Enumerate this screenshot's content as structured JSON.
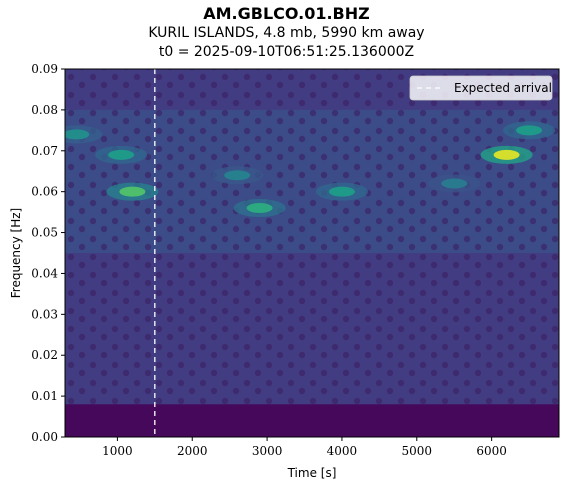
{
  "chart_data": {
    "type": "heatmap",
    "title": "AM.GBLCO.01.BHZ",
    "subtitle": "KURIL ISLANDS, 4.8 mb, 5990 km away",
    "subtitle2": "t0 = 2025-09-10T06:51:25.136000Z",
    "xlabel": "Time [s]",
    "ylabel": "Frequency [Hz]",
    "xlim": [
      300,
      6900
    ],
    "ylim": [
      0.0,
      0.09
    ],
    "xticks": [
      1000,
      2000,
      3000,
      4000,
      5000,
      6000
    ],
    "xtick_labels": [
      "1000",
      "2000",
      "3000",
      "4000",
      "5000",
      "6000"
    ],
    "yticks": [
      0.0,
      0.01,
      0.02,
      0.03,
      0.04,
      0.05,
      0.06,
      0.07,
      0.08,
      0.09
    ],
    "ytick_labels": [
      "0.00",
      "0.01",
      "0.02",
      "0.03",
      "0.04",
      "0.05",
      "0.06",
      "0.07",
      "0.08",
      "0.09"
    ],
    "colormap": "viridis",
    "expected_arrival": {
      "time": 1500,
      "label": "Expected arrival",
      "color": "#ffffff",
      "style": "dashed"
    },
    "hotspots": [
      {
        "t": 1200,
        "f": 0.06,
        "level": 0.72
      },
      {
        "t": 1050,
        "f": 0.069,
        "level": 0.55
      },
      {
        "t": 2900,
        "f": 0.056,
        "level": 0.62
      },
      {
        "t": 4000,
        "f": 0.06,
        "level": 0.55
      },
      {
        "t": 6200,
        "f": 0.069,
        "level": 0.95
      },
      {
        "t": 6500,
        "f": 0.075,
        "level": 0.55
      },
      {
        "t": 450,
        "f": 0.074,
        "level": 0.5
      },
      {
        "t": 2600,
        "f": 0.064,
        "level": 0.45
      },
      {
        "t": 5500,
        "f": 0.062,
        "level": 0.42
      }
    ],
    "legend": {
      "position": "upper right",
      "entries": [
        "Expected arrival"
      ]
    },
    "grid": false
  }
}
